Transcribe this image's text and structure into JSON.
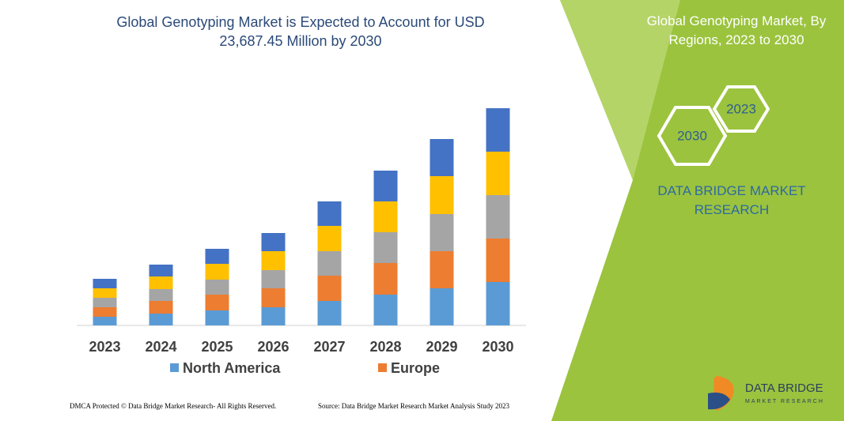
{
  "chart_data": {
    "type": "stacked-bar",
    "title": "Global Genotyping Market is Expected to Account for USD 23,687.45 Million by 2030",
    "categories": [
      "2023",
      "2024",
      "2025",
      "2026",
      "2027",
      "2028",
      "2029",
      "2030"
    ],
    "series": [
      {
        "name": "North America",
        "color": "#5b9bd5",
        "values": [
          11,
          15,
          19,
          23,
          31,
          39,
          47,
          55
        ]
      },
      {
        "name": "Europe",
        "color": "#ed7d31",
        "values": [
          12,
          16,
          20,
          24,
          32,
          40,
          47,
          55
        ]
      },
      {
        "color": "#a5a5a5",
        "values": [
          12,
          15,
          19,
          23,
          31,
          39,
          47,
          55
        ]
      },
      {
        "color": "#ffc000",
        "values": [
          12,
          16,
          20,
          24,
          32,
          39,
          48,
          55
        ]
      },
      {
        "color": "#4472c4",
        "values": [
          12,
          15,
          19,
          23,
          31,
          39,
          47,
          55
        ]
      }
    ],
    "ylim": [
      0,
      275
    ]
  },
  "side_panel": {
    "title": "Global Genotyping Market, By Regions, 2023 to 2030",
    "hexagons": [
      "2023",
      "2030"
    ],
    "brand": "DATA BRIDGE MARKET RESEARCH"
  },
  "footer": {
    "left": "DMCA Protected © Data Bridge Market Research- All Rights Reserved.",
    "right": "Source: Data Bridge Market Research Market Analysis Study 2023"
  },
  "logo": {
    "name": "DATA BRIDGE",
    "tagline": "MARKET RESEARCH"
  }
}
